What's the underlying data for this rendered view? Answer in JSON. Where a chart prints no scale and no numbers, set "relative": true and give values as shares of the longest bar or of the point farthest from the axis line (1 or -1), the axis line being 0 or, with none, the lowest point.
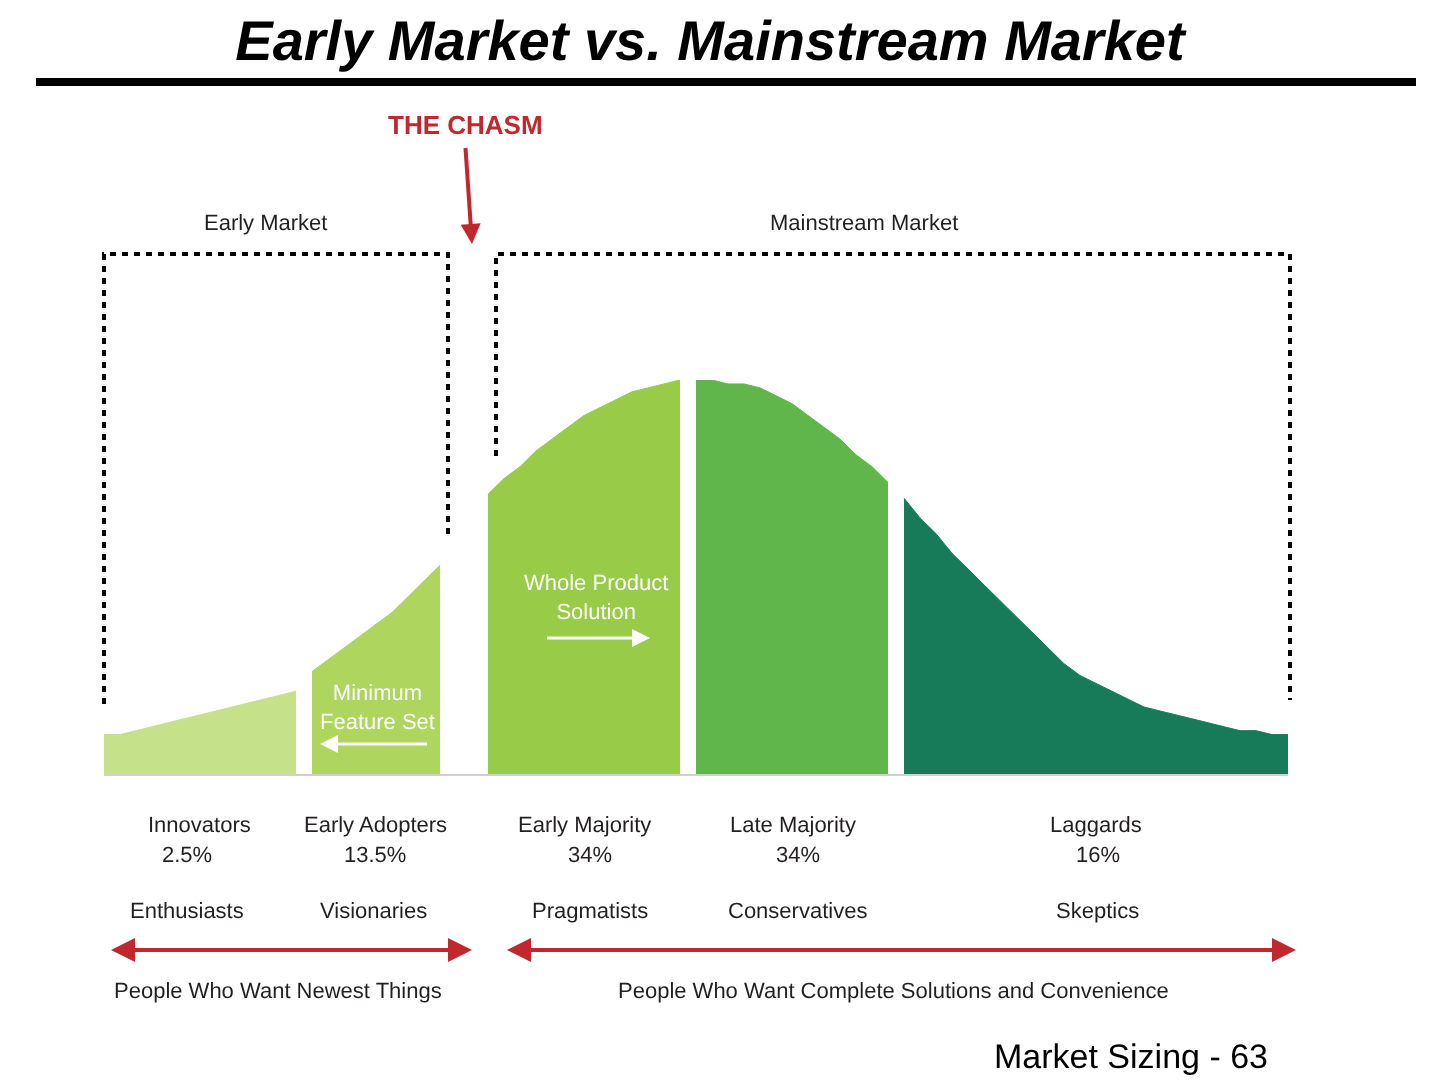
{
  "chart_data": {
    "type": "area",
    "relative": true,
    "title": "Early Market vs. Mainstream Market",
    "categories": [
      null,
      null,
      null,
      null,
      null,
      null,
      null,
      null,
      null,
      null,
      null,
      null,
      null,
      null,
      null,
      null,
      null,
      null,
      null,
      null,
      null,
      null,
      null,
      null,
      null,
      null,
      null,
      null,
      null,
      null,
      null,
      null,
      null,
      null,
      null,
      null,
      null,
      null,
      null,
      null,
      null,
      null,
      null,
      null,
      null,
      null,
      null,
      null,
      null,
      null,
      null,
      null,
      null,
      null,
      null,
      null,
      null,
      null,
      null,
      null,
      null,
      null,
      null,
      null,
      null,
      null,
      null,
      null,
      null,
      null,
      null,
      null,
      null,
      null,
      null
    ],
    "series": [
      {
        "name": "Innovators",
        "color": "#c5e189",
        "values": [
          0.1,
          0.1,
          0.11,
          0.12,
          0.13,
          0.14,
          0.15,
          0.16,
          0.17,
          0.18,
          0.19,
          0.2,
          0.21,
          null,
          null,
          null,
          null,
          null,
          null,
          null,
          null,
          null,
          null,
          null,
          null,
          null,
          null,
          null,
          null,
          null,
          null,
          null,
          null,
          null,
          null,
          null,
          null,
          null,
          null,
          null,
          null,
          null,
          null,
          null,
          null,
          null,
          null,
          null,
          null,
          null,
          null,
          null,
          null,
          null,
          null,
          null,
          null,
          null,
          null,
          null,
          null,
          null,
          null,
          null,
          null,
          null,
          null,
          null,
          null,
          null,
          null,
          null,
          null,
          null,
          null
        ]
      },
      {
        "name": "Early Adopters",
        "color": "#aed65f",
        "values": [
          null,
          null,
          null,
          null,
          null,
          null,
          null,
          null,
          null,
          null,
          null,
          null,
          null,
          0.26,
          0.29,
          0.32,
          0.35,
          0.38,
          0.41,
          0.45,
          0.49,
          0.53,
          null,
          null,
          null,
          null,
          null,
          null,
          null,
          null,
          null,
          null,
          null,
          null,
          null,
          null,
          null,
          null,
          null,
          null,
          null,
          null,
          null,
          null,
          null,
          null,
          null,
          null,
          null,
          null,
          null,
          null,
          null,
          null,
          null,
          null,
          null,
          null,
          null,
          null,
          null,
          null,
          null,
          null,
          null,
          null,
          null,
          null,
          null,
          null,
          null,
          null,
          null,
          null,
          null
        ]
      },
      {
        "name": "Early Majority",
        "color": "#98cb48",
        "values": [
          null,
          null,
          null,
          null,
          null,
          null,
          null,
          null,
          null,
          null,
          null,
          null,
          null,
          null,
          null,
          null,
          null,
          null,
          null,
          null,
          null,
          null,
          null,
          null,
          0.71,
          0.75,
          0.78,
          0.82,
          0.85,
          0.88,
          0.91,
          0.93,
          0.95,
          0.97,
          0.98,
          0.99,
          1.0,
          null,
          null,
          null,
          null,
          null,
          null,
          null,
          null,
          null,
          null,
          null,
          null,
          null,
          null,
          null,
          null,
          null,
          null,
          null,
          null,
          null,
          null,
          null,
          null,
          null,
          null,
          null,
          null,
          null,
          null,
          null,
          null,
          null,
          null,
          null,
          null,
          null,
          null
        ]
      },
      {
        "name": "Late Majority",
        "color": "#60b64b",
        "values": [
          null,
          null,
          null,
          null,
          null,
          null,
          null,
          null,
          null,
          null,
          null,
          null,
          null,
          null,
          null,
          null,
          null,
          null,
          null,
          null,
          null,
          null,
          null,
          null,
          null,
          null,
          null,
          null,
          null,
          null,
          null,
          null,
          null,
          null,
          null,
          null,
          null,
          1.0,
          1.0,
          0.99,
          0.99,
          0.98,
          0.96,
          0.94,
          0.91,
          0.88,
          0.85,
          0.81,
          0.78,
          0.74,
          null,
          null,
          null,
          null,
          null,
          null,
          null,
          null,
          null,
          null,
          null,
          null,
          null,
          null,
          null,
          null,
          null,
          null,
          null,
          null,
          null,
          null,
          null,
          null,
          null
        ]
      },
      {
        "name": "Laggards",
        "color": "#177a58",
        "values": [
          null,
          null,
          null,
          null,
          null,
          null,
          null,
          null,
          null,
          null,
          null,
          null,
          null,
          null,
          null,
          null,
          null,
          null,
          null,
          null,
          null,
          null,
          null,
          null,
          null,
          null,
          null,
          null,
          null,
          null,
          null,
          null,
          null,
          null,
          null,
          null,
          null,
          null,
          null,
          null,
          null,
          null,
          null,
          null,
          null,
          null,
          null,
          null,
          null,
          null,
          0.7,
          0.65,
          0.61,
          0.56,
          0.52,
          0.48,
          0.44,
          0.4,
          0.36,
          0.32,
          0.28,
          0.25,
          0.23,
          0.21,
          0.19,
          0.17,
          0.16,
          0.15,
          0.14,
          0.13,
          0.12,
          0.11,
          0.11,
          0.1,
          0.1
        ]
      }
    ],
    "annotations": [
      "THE CHASM",
      "Early Market",
      "Mainstream Market",
      "Minimum\nFeature Set",
      "Whole Product\nSolution",
      "2.5%",
      "13.5%",
      "34%",
      "34%",
      "16%",
      "Enthusiasts",
      "Visionaries",
      "Pragmatists",
      "Conservatives",
      "Skeptics",
      "People Who Want Newest Things",
      "People Who Want Complete Solutions and Convenience",
      "Market Sizing - 63"
    ]
  }
}
